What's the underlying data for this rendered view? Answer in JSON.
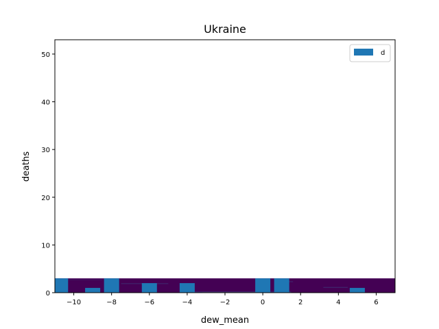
{
  "chart_data": {
    "type": "bar",
    "title": "Ukraine",
    "xlabel": "dew_mean",
    "ylabel": "deaths",
    "xlim": [
      -11,
      7
    ],
    "ylim": [
      0,
      53
    ],
    "xticks": [
      -10,
      -8,
      -6,
      -4,
      -2,
      0,
      2,
      4,
      6
    ],
    "yticks": [
      0,
      10,
      20,
      30,
      40,
      50
    ],
    "grid": false,
    "legend": {
      "placement": "top-right",
      "entries": [
        "d"
      ]
    },
    "colors": {
      "bars": "#1f77b4",
      "heatmap_low": "#440154",
      "heatmap_mid": "#3b528b",
      "heatmap_high": "#fde725"
    },
    "series": [
      {
        "name": "d",
        "bar_width": 0.8,
        "x": [
          -10.7,
          -9.0,
          -8.0,
          -6.0,
          -4.0,
          0.0,
          1.0,
          5.0
        ],
        "values": [
          3,
          1,
          3,
          2,
          2,
          3,
          3,
          1
        ]
      }
    ],
    "heatmap": {
      "x_range": [
        -11,
        7
      ],
      "y_range": [
        0,
        3
      ],
      "background_level": 0.0,
      "cells": [
        {
          "x0": -11,
          "x1": -10.6,
          "y0": 0,
          "y1": 3,
          "level": 0.15
        },
        {
          "x0": -10.6,
          "x1": -8.5,
          "y0": 2.6,
          "y1": 2.8,
          "level": 0.1
        },
        {
          "x0": -7.5,
          "x1": -5.0,
          "y0": 1.8,
          "y1": 2.0,
          "level": 0.18
        },
        {
          "x0": -4.0,
          "x1": 1.5,
          "y0": 0.1,
          "y1": 0.2,
          "level": 0.45
        },
        {
          "x0": -3.2,
          "x1": -0.3,
          "y0": 0.0,
          "y1": 0.08,
          "level": 0.9
        },
        {
          "x0": 0.8,
          "x1": 1.6,
          "y0": 2.2,
          "y1": 2.4,
          "level": 0.2
        },
        {
          "x0": 3.2,
          "x1": 4.5,
          "y0": 1.0,
          "y1": 1.2,
          "level": 0.2
        }
      ]
    }
  }
}
